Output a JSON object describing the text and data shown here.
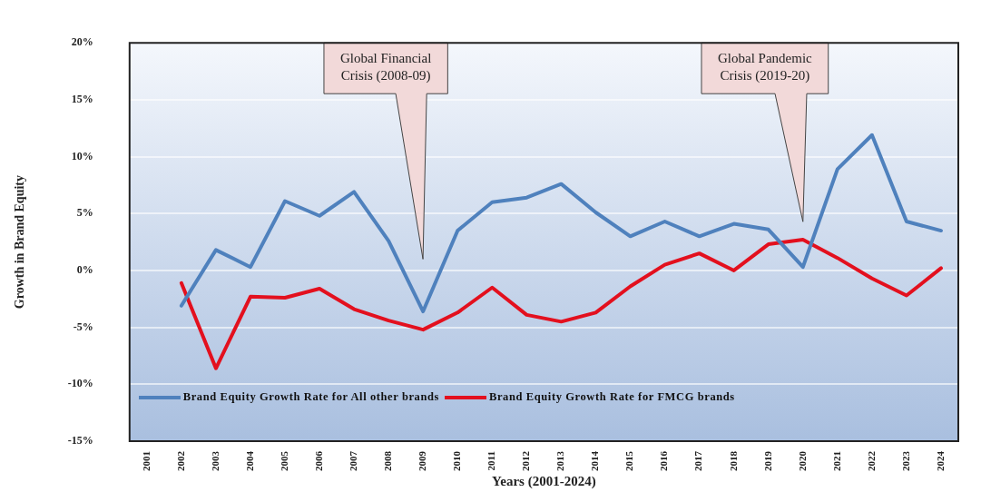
{
  "chart_data": {
    "type": "line",
    "xlabel": "Years (2001-2024)",
    "ylabel": "Growth in Brand Equity",
    "categories": [
      "2001",
      "2002",
      "2003",
      "2004",
      "2005",
      "2006",
      "2007",
      "2008",
      "2009",
      "2010",
      "2011",
      "2012",
      "2013",
      "2014",
      "2015",
      "2016",
      "2017",
      "2018",
      "2019",
      "2020",
      "2021",
      "2022",
      "2023",
      "2024"
    ],
    "series": [
      {
        "name": "Brand Equity Growth Rate for All other brands",
        "color": "#4f81bd",
        "values": [
          null,
          -3.1,
          1.8,
          0.3,
          6.1,
          4.8,
          6.9,
          2.6,
          -3.6,
          3.5,
          6.0,
          6.4,
          7.6,
          5.1,
          3.0,
          4.3,
          3.0,
          4.1,
          3.6,
          0.3,
          8.9,
          11.9,
          4.3,
          3.5
        ]
      },
      {
        "name": "Brand Equity Growth Rate for FMCG brands",
        "color": "#e3101e",
        "values": [
          null,
          -1.1,
          -8.6,
          -2.3,
          -2.4,
          -1.6,
          -3.4,
          -4.4,
          -5.2,
          -3.7,
          -1.5,
          -3.9,
          -4.5,
          -3.7,
          -1.4,
          0.5,
          1.5,
          0.0,
          2.3,
          2.7,
          1.1,
          -0.7,
          -2.2,
          0.2
        ]
      }
    ],
    "ylim": [
      -15,
      20
    ],
    "yticks": [
      {
        "value": -15,
        "label": "-15%"
      },
      {
        "value": -10,
        "label": "-10%"
      },
      {
        "value": -5,
        "label": "-5%"
      },
      {
        "value": 0,
        "label": "0%"
      },
      {
        "value": 5,
        "label": "5%"
      },
      {
        "value": 10,
        "label": "10%"
      },
      {
        "value": 15,
        "label": "15%"
      },
      {
        "value": 20,
        "label": "20%"
      }
    ],
    "annotations": [
      "Global Financial\nCrisis (2008-09)",
      "Global Pandemic\nCrisis (2019-20)"
    ],
    "grid": "y",
    "legend": "bottom",
    "marker": "none",
    "line_style": "solid"
  }
}
